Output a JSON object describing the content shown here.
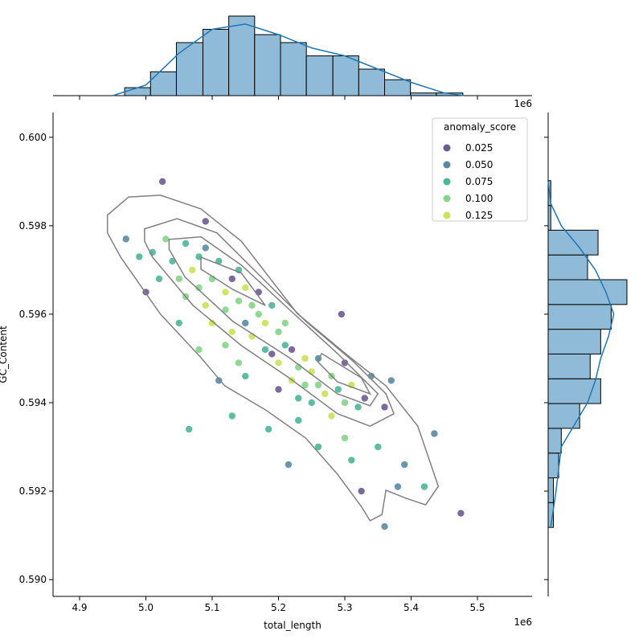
{
  "chart_data": {
    "type": "scatter",
    "xlabel": "total_length",
    "ylabel": "GC_Content",
    "x_offset_label": "1e6",
    "xlim": [
      4.86,
      5.5824
    ],
    "ylim": [
      0.58962,
      0.60056
    ],
    "xticks": [
      4.9,
      {
        "value": 5,
        "label": "5.0"
      },
      5.1,
      5.2,
      5.3,
      5.4,
      5.5
    ],
    "yticks": [
      {
        "value": 0.59,
        "label": "0.590"
      },
      0.592,
      0.594,
      0.596,
      0.598,
      {
        "value": 0.6,
        "label": "0.600"
      }
    ],
    "legend_title": "anomaly_score",
    "legend_loc": "upper right",
    "hue_levels": [
      0.025,
      {
        "value": 0.05,
        "label": "0.050"
      },
      0.075,
      {
        "value": 0.1,
        "label": "0.100"
      },
      0.125
    ],
    "hue_colors": [
      "#6e5993",
      "#5a8aa2",
      "#4db598",
      "#85d48a",
      "#c8e35a"
    ],
    "points": {
      "x": [
        5.025,
        5.475,
        5.36,
        5.065,
        5.215,
        5.325,
        5.42,
        5.435,
        5.295,
        4.97,
        5.0,
        5.09,
        5.11,
        5.38,
        5.35,
        5.39,
        5.37,
        5.34,
        5.36,
        5.31,
        5.3,
        5.26,
        5.185,
        5.13,
        5.01,
        5.03,
        5.04,
        5.05,
        5.06,
        5.06,
        5.07,
        5.08,
        5.08,
        5.09,
        5.09,
        5.1,
        5.1,
        5.11,
        5.12,
        5.12,
        5.13,
        5.13,
        5.14,
        5.14,
        5.15,
        5.15,
        5.16,
        5.16,
        5.17,
        5.17,
        5.18,
        5.18,
        5.19,
        5.19,
        5.2,
        5.2,
        5.21,
        5.21,
        5.22,
        5.22,
        5.23,
        5.23,
        5.24,
        5.24,
        5.25,
        5.25,
        5.26,
        5.26,
        5.27,
        5.28,
        5.28,
        5.29,
        5.3,
        5.3,
        5.31,
        5.32,
        5.33,
        5.05,
        5.12,
        5.15,
        5.2,
        5.23,
        5.02,
        4.99,
        5.08,
        5.14
      ],
      "y": [
        0.599,
        0.5915,
        0.5912,
        0.5934,
        0.5926,
        0.592,
        0.5921,
        0.5933,
        0.596,
        0.5977,
        0.5965,
        0.5981,
        0.5945,
        0.5921,
        0.593,
        0.5926,
        0.5945,
        0.5946,
        0.5939,
        0.5927,
        0.5932,
        0.593,
        0.5934,
        0.5937,
        0.5974,
        0.5977,
        0.5972,
        0.5968,
        0.5976,
        0.5964,
        0.597,
        0.5973,
        0.5966,
        0.5962,
        0.5975,
        0.5968,
        0.5958,
        0.5972,
        0.5965,
        0.5961,
        0.5968,
        0.5956,
        0.5963,
        0.597,
        0.5958,
        0.5966,
        0.5962,
        0.5955,
        0.5965,
        0.596,
        0.5958,
        0.5952,
        0.5962,
        0.5951,
        0.5956,
        0.5949,
        0.5953,
        0.5958,
        0.5945,
        0.5952,
        0.5948,
        0.5941,
        0.595,
        0.5944,
        0.5947,
        0.594,
        0.5944,
        0.595,
        0.5942,
        0.5946,
        0.5937,
        0.5943,
        0.5949,
        0.594,
        0.5944,
        0.5939,
        0.5941,
        0.5958,
        0.5953,
        0.5946,
        0.5943,
        0.5936,
        0.5968,
        0.5973,
        0.5952,
        0.5949
      ],
      "hue": [
        0.025,
        0.025,
        0.05,
        0.075,
        0.05,
        0.025,
        0.075,
        0.05,
        0.025,
        0.05,
        0.025,
        0.025,
        0.05,
        0.05,
        0.075,
        0.05,
        0.05,
        0.05,
        0.025,
        0.075,
        0.1,
        0.075,
        0.075,
        0.075,
        0.075,
        0.1,
        0.075,
        0.1,
        0.075,
        0.1,
        0.125,
        0.075,
        0.1,
        0.125,
        0.05,
        0.1,
        0.125,
        0.075,
        0.125,
        0.1,
        0.025,
        0.125,
        0.1,
        0.075,
        0.05,
        0.125,
        0.1,
        0.125,
        0.025,
        0.1,
        0.125,
        0.075,
        0.075,
        0.025,
        0.1,
        0.125,
        0.075,
        0.1,
        0.125,
        0.025,
        0.1,
        0.075,
        0.125,
        0.1,
        0.125,
        0.075,
        0.1,
        0.05,
        0.125,
        0.1,
        0.125,
        0.075,
        0.025,
        0.1,
        0.125,
        0.075,
        0.025,
        0.075,
        0.1,
        0.075,
        0.025,
        0.075,
        0.075,
        0.075,
        0.1,
        0.1
      ]
    },
    "contour_color": "#808080",
    "contours": [
      {
        "x": [
          4.942,
          4.974,
          5.022,
          5.083,
          5.144,
          5.228,
          5.301,
          5.362,
          5.41,
          5.441,
          5.422,
          5.392,
          5.362,
          5.356,
          5.338,
          5.325,
          5.289,
          5.241,
          5.18,
          5.119,
          5.083,
          5.022,
          4.962,
          4.942
        ],
        "y": [
          0.59824,
          0.59865,
          0.59869,
          0.59838,
          0.59765,
          0.59602,
          0.59511,
          0.59438,
          0.59347,
          0.59211,
          0.59169,
          0.59184,
          0.59202,
          0.59147,
          0.59133,
          0.59165,
          0.59238,
          0.5932,
          0.59384,
          0.59438,
          0.59502,
          0.596,
          0.59729,
          0.59784
        ]
      },
      {
        "x": [
          4.998,
          5.047,
          5.107,
          5.168,
          5.241,
          5.313,
          5.362,
          5.374,
          5.338,
          5.289,
          5.216,
          5.144,
          5.071,
          5.01,
          4.998
        ],
        "y": [
          0.59793,
          0.59816,
          0.59784,
          0.59693,
          0.59584,
          0.59493,
          0.5942,
          0.59375,
          0.59347,
          0.59375,
          0.59456,
          0.59529,
          0.5962,
          0.59729,
          0.59765
        ]
      },
      {
        "x": [
          5.035,
          5.083,
          5.144,
          5.216,
          5.289,
          5.35,
          5.338,
          5.289,
          5.216,
          5.131,
          5.059,
          5.035
        ],
        "y": [
          0.59769,
          0.59775,
          0.59711,
          0.59611,
          0.59511,
          0.5942,
          0.59393,
          0.5942,
          0.59502,
          0.59584,
          0.59684,
          0.59747
        ]
      },
      {
        "x": [
          5.083,
          5.144,
          5.18,
          5.131,
          5.083
        ],
        "y": [
          0.59729,
          0.59693,
          0.5962,
          0.59656,
          0.59702
        ]
      },
      {
        "x": [
          5.265,
          5.325,
          5.338,
          5.289,
          5.259
        ],
        "y": [
          0.59511,
          0.59456,
          0.5942,
          0.59447,
          0.59493
        ]
      }
    ],
    "hist_color": "#8fbbd9",
    "kde_color": "#1f77b4",
    "top_hist": {
      "bins": [
        4.968,
        5.007,
        5.046,
        5.086,
        5.125,
        5.164,
        5.203,
        5.242,
        5.282,
        5.321,
        5.36,
        5.399,
        5.438,
        5.478
      ],
      "counts": [
        3,
        9,
        20,
        25,
        30,
        23,
        20,
        15,
        15,
        10,
        6,
        1,
        1
      ],
      "kde_x": [
        4.95,
        5.0,
        5.05,
        5.1,
        5.15,
        5.2,
        5.25,
        5.3,
        5.35,
        5.4,
        5.45,
        5.48
      ],
      "kde": [
        0,
        4,
        16,
        25,
        27,
        23,
        18,
        15,
        10,
        5,
        1,
        0
      ]
    },
    "right_hist": {
      "bins": [
        0.59118,
        0.59174,
        0.5923,
        0.59286,
        0.59342,
        0.59398,
        0.59454,
        0.5951,
        0.59566,
        0.59622,
        0.59678,
        0.59734,
        0.5979,
        0.59846,
        0.59902
      ],
      "counts": [
        2,
        2,
        4,
        5,
        12,
        20,
        16,
        20,
        24,
        30,
        15,
        19,
        1,
        1
      ],
      "kde_y": [
        0.5912,
        0.592,
        0.593,
        0.594,
        0.5945,
        0.595,
        0.5955,
        0.596,
        0.5965,
        0.597,
        0.5975,
        0.598,
        0.5985,
        0.599
      ],
      "kde": [
        1,
        3,
        5,
        15,
        18,
        20,
        23,
        25,
        22,
        18,
        12,
        5,
        1,
        0
      ]
    }
  }
}
